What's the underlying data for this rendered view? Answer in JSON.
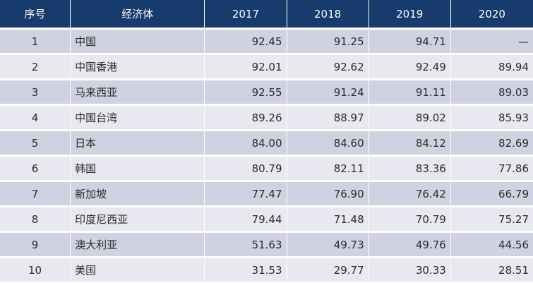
{
  "table": {
    "headers": [
      "序号",
      "经济体",
      "2017",
      "2018",
      "2019",
      "2020"
    ],
    "rows": [
      {
        "idx": "1",
        "economy": "中国",
        "y2017": "92.45",
        "y2018": "91.25",
        "y2019": "94.71",
        "y2020": "—"
      },
      {
        "idx": "2",
        "economy": "中国香港",
        "y2017": "92.01",
        "y2018": "92.62",
        "y2019": "92.49",
        "y2020": "89.94"
      },
      {
        "idx": "3",
        "economy": "马来西亚",
        "y2017": "92.55",
        "y2018": "91.24",
        "y2019": "91.11",
        "y2020": "89.03"
      },
      {
        "idx": "4",
        "economy": "中国台湾",
        "y2017": "89.26",
        "y2018": "88.97",
        "y2019": "89.02",
        "y2020": "85.93"
      },
      {
        "idx": "5",
        "economy": "日本",
        "y2017": "84.00",
        "y2018": "84.60",
        "y2019": "84.12",
        "y2020": "82.69"
      },
      {
        "idx": "6",
        "economy": "韩国",
        "y2017": "80.79",
        "y2018": "82.11",
        "y2019": "83.36",
        "y2020": "77.86"
      },
      {
        "idx": "7",
        "economy": "新加坡",
        "y2017": "77.47",
        "y2018": "76.90",
        "y2019": "76.42",
        "y2020": "66.79"
      },
      {
        "idx": "8",
        "economy": "印度尼西亚",
        "y2017": "79.44",
        "y2018": "71.48",
        "y2019": "70.79",
        "y2020": "75.27"
      },
      {
        "idx": "9",
        "economy": "澳大利亚",
        "y2017": "51.63",
        "y2018": "49.73",
        "y2019": "49.76",
        "y2020": "44.56"
      },
      {
        "idx": "10",
        "economy": "美国",
        "y2017": "31.53",
        "y2018": "29.77",
        "y2019": "30.33",
        "y2020": "28.51"
      }
    ]
  },
  "colors": {
    "header_bg": "#173b6c",
    "header_text": "#ffffff",
    "row_odd": "#d0d2e1",
    "row_even": "#e8e9f0",
    "body_text": "#2b2b2b"
  }
}
